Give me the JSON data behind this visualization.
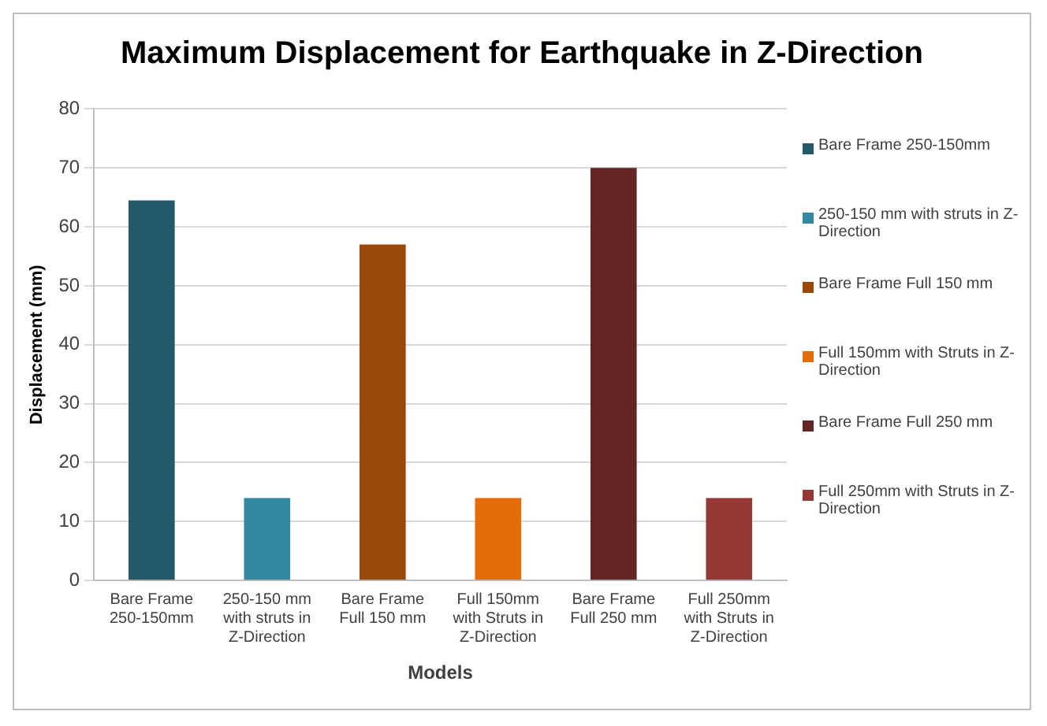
{
  "chart_data": {
    "type": "bar",
    "title": "Maximum Displacement for Earthquake in Z-Direction",
    "xlabel": "Models",
    "ylabel": "Displacement (mm)",
    "categories": [
      "Bare Frame 250-150mm",
      "250-150 mm with struts in Z-Direction",
      "Bare Frame Full 150 mm",
      "Full 150mm with Struts in Z-Direction",
      "Bare Frame Full 250 mm",
      "Full 250mm with Struts in Z-Direction"
    ],
    "series": [
      {
        "name": "Bare Frame 250-150mm",
        "color": "#225a6a",
        "values": [
          64.5,
          null,
          null,
          null,
          null,
          null
        ]
      },
      {
        "name": "250-150 mm with struts in Z-Direction",
        "color": "#31889f",
        "values": [
          null,
          14,
          null,
          null,
          null,
          null
        ]
      },
      {
        "name": "Bare Frame Full 150 mm",
        "color": "#984807",
        "values": [
          null,
          null,
          57,
          null,
          null,
          null
        ]
      },
      {
        "name": "Full 150mm with Struts in Z-Direction",
        "color": "#e46c0a",
        "values": [
          null,
          null,
          null,
          14,
          null,
          null
        ]
      },
      {
        "name": "Bare Frame Full 250 mm",
        "color": "#632423",
        "values": [
          null,
          null,
          null,
          null,
          70,
          null
        ]
      },
      {
        "name": "Full 250mm with Struts in Z-Direction",
        "color": "#953735",
        "values": [
          null,
          null,
          null,
          null,
          null,
          14
        ]
      }
    ],
    "ylim": [
      0,
      80
    ],
    "yticks": [
      0,
      10,
      20,
      30,
      40,
      50,
      60,
      70,
      80
    ],
    "grid": "y",
    "legend": "right"
  }
}
